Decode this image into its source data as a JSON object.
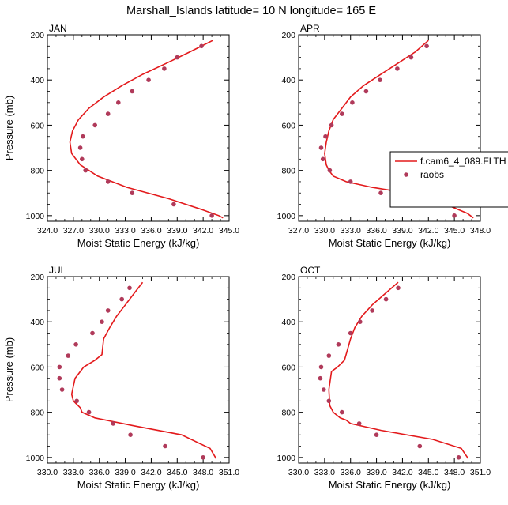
{
  "figure": {
    "title": "Marshall_Islands  latitude= 10 N longitude= 165 E"
  },
  "colors": {
    "model_line": "#e31a1c",
    "obs_marker": "#b03a5a"
  },
  "legend": {
    "placement": "right",
    "model_label": "f.cam6_4_089.FLTH",
    "obs_label": "raobs"
  },
  "chart_data": [
    {
      "type": "line",
      "panel_label": "JAN",
      "xlabel": "Moist Static Energy (kJ/kg)",
      "ylabel": "Pressure (mb)",
      "xlim": [
        324.0,
        345.0
      ],
      "ylim": [
        1025,
        200
      ],
      "xticks": [
        "324.0",
        "327.0",
        "330.0",
        "333.0",
        "336.0",
        "339.0",
        "342.0",
        "345.0"
      ],
      "yticks": [
        "200",
        "400",
        "600",
        "800",
        "1000"
      ],
      "series": [
        {
          "kind": "line",
          "x": [
            343.1,
            340.5,
            337.8,
            335.0,
            332.6,
            330.5,
            328.8,
            327.6,
            326.9,
            326.6,
            326.8,
            327.8,
            329.8,
            333.2,
            338.0,
            342.0,
            343.8,
            344.3
          ],
          "y": [
            225,
            275,
            325,
            375,
            425,
            475,
            525,
            575,
            625,
            675,
            725,
            775,
            825,
            875,
            925,
            975,
            1000,
            1010
          ]
        },
        {
          "kind": "scatter",
          "x": [
            341.8,
            339.0,
            337.5,
            335.7,
            333.8,
            332.2,
            331.0,
            329.5,
            328.1,
            327.8,
            328.0,
            328.4,
            331.0,
            333.8,
            338.6,
            343.0
          ],
          "y": [
            250,
            300,
            350,
            400,
            450,
            500,
            550,
            600,
            650,
            700,
            750,
            800,
            850,
            900,
            950,
            1000
          ]
        }
      ]
    },
    {
      "type": "line",
      "panel_label": "APR",
      "xlabel": "Moist Static Energy (kJ/kg)",
      "ylabel": "",
      "xlim": [
        327.0,
        348.0
      ],
      "ylim": [
        1025,
        200
      ],
      "xticks": [
        "327.0",
        "330.0",
        "333.0",
        "336.0",
        "339.0",
        "342.0",
        "345.0",
        "348.0"
      ],
      "yticks": [
        "200",
        "400",
        "600",
        "800",
        "1000"
      ],
      "series": [
        {
          "kind": "line",
          "x": [
            342.0,
            340.5,
            338.5,
            336.5,
            334.5,
            333.0,
            332.0,
            331.0,
            330.5,
            330.2,
            330.0,
            330.2,
            330.5,
            331.0,
            332.5,
            335.5,
            339.5,
            344.0,
            346.5,
            347.2
          ],
          "y": [
            225,
            275,
            325,
            375,
            425,
            475,
            525,
            575,
            625,
            675,
            725,
            775,
            800,
            825,
            850,
            875,
            900,
            950,
            990,
            1010
          ]
        },
        {
          "kind": "scatter",
          "x": [
            341.8,
            340.0,
            338.4,
            336.4,
            334.8,
            333.2,
            332.0,
            330.8,
            330.1,
            329.6,
            329.8,
            330.6,
            333.0,
            336.5,
            341.5,
            345.0
          ],
          "y": [
            250,
            300,
            350,
            400,
            450,
            500,
            550,
            600,
            650,
            700,
            750,
            800,
            850,
            900,
            950,
            1000
          ]
        }
      ]
    },
    {
      "type": "line",
      "panel_label": "JUL",
      "xlabel": "Moist Static Energy (kJ/kg)",
      "ylabel": "Pressure (mb)",
      "xlim": [
        330.0,
        351.0
      ],
      "ylim": [
        1025,
        200
      ],
      "xticks": [
        "330.0",
        "333.0",
        "336.0",
        "339.0",
        "342.0",
        "345.0",
        "348.0",
        "351.0"
      ],
      "yticks": [
        "200",
        "400",
        "600",
        "800",
        "1000"
      ],
      "series": [
        {
          "kind": "line",
          "x": [
            341.0,
            340.0,
            339.0,
            338.0,
            337.2,
            336.5,
            336.3,
            335.5,
            334.2,
            333.2,
            332.8,
            333.0,
            333.8,
            334.0,
            335.5,
            340.0,
            345.5,
            348.8,
            349.5
          ],
          "y": [
            225,
            275,
            325,
            375,
            425,
            475,
            545,
            570,
            600,
            650,
            720,
            750,
            780,
            800,
            825,
            860,
            900,
            960,
            1005
          ]
        },
        {
          "kind": "scatter",
          "x": [
            339.5,
            338.6,
            337.0,
            336.3,
            335.2,
            333.3,
            332.4,
            331.4,
            331.4,
            331.7,
            333.4,
            334.8,
            337.6,
            339.6,
            343.6,
            348.0
          ],
          "y": [
            250,
            300,
            350,
            400,
            450,
            500,
            550,
            600,
            650,
            700,
            750,
            800,
            850,
            900,
            950,
            1000
          ]
        }
      ]
    },
    {
      "type": "line",
      "panel_label": "OCT",
      "xlabel": "Moist Static Energy (kJ/kg)",
      "ylabel": "",
      "xlim": [
        330.0,
        351.0
      ],
      "ylim": [
        1025,
        200
      ],
      "xticks": [
        "330.0",
        "333.0",
        "336.0",
        "339.0",
        "342.0",
        "345.0",
        "348.0",
        "351.0"
      ],
      "yticks": [
        "200",
        "400",
        "600",
        "800",
        "1000"
      ],
      "series": [
        {
          "kind": "line",
          "x": [
            341.5,
            340.0,
            338.5,
            337.3,
            336.5,
            336.0,
            335.6,
            335.3,
            334.5,
            333.8,
            333.5,
            333.6,
            334.0,
            334.8,
            335.5,
            336.0,
            339.5,
            345.5,
            348.8,
            349.6
          ],
          "y": [
            225,
            275,
            325,
            375,
            425,
            475,
            530,
            570,
            600,
            620,
            700,
            770,
            800,
            825,
            835,
            850,
            880,
            920,
            960,
            1005
          ]
        },
        {
          "kind": "scatter",
          "x": [
            341.5,
            340.1,
            338.5,
            337.1,
            336.0,
            334.6,
            333.5,
            332.6,
            332.5,
            332.9,
            333.5,
            335.0,
            337.0,
            339.0,
            344.0,
            348.5
          ],
          "y": [
            250,
            300,
            350,
            400,
            450,
            500,
            550,
            600,
            650,
            700,
            750,
            800,
            850,
            900,
            950,
            1000
          ]
        }
      ]
    }
  ]
}
